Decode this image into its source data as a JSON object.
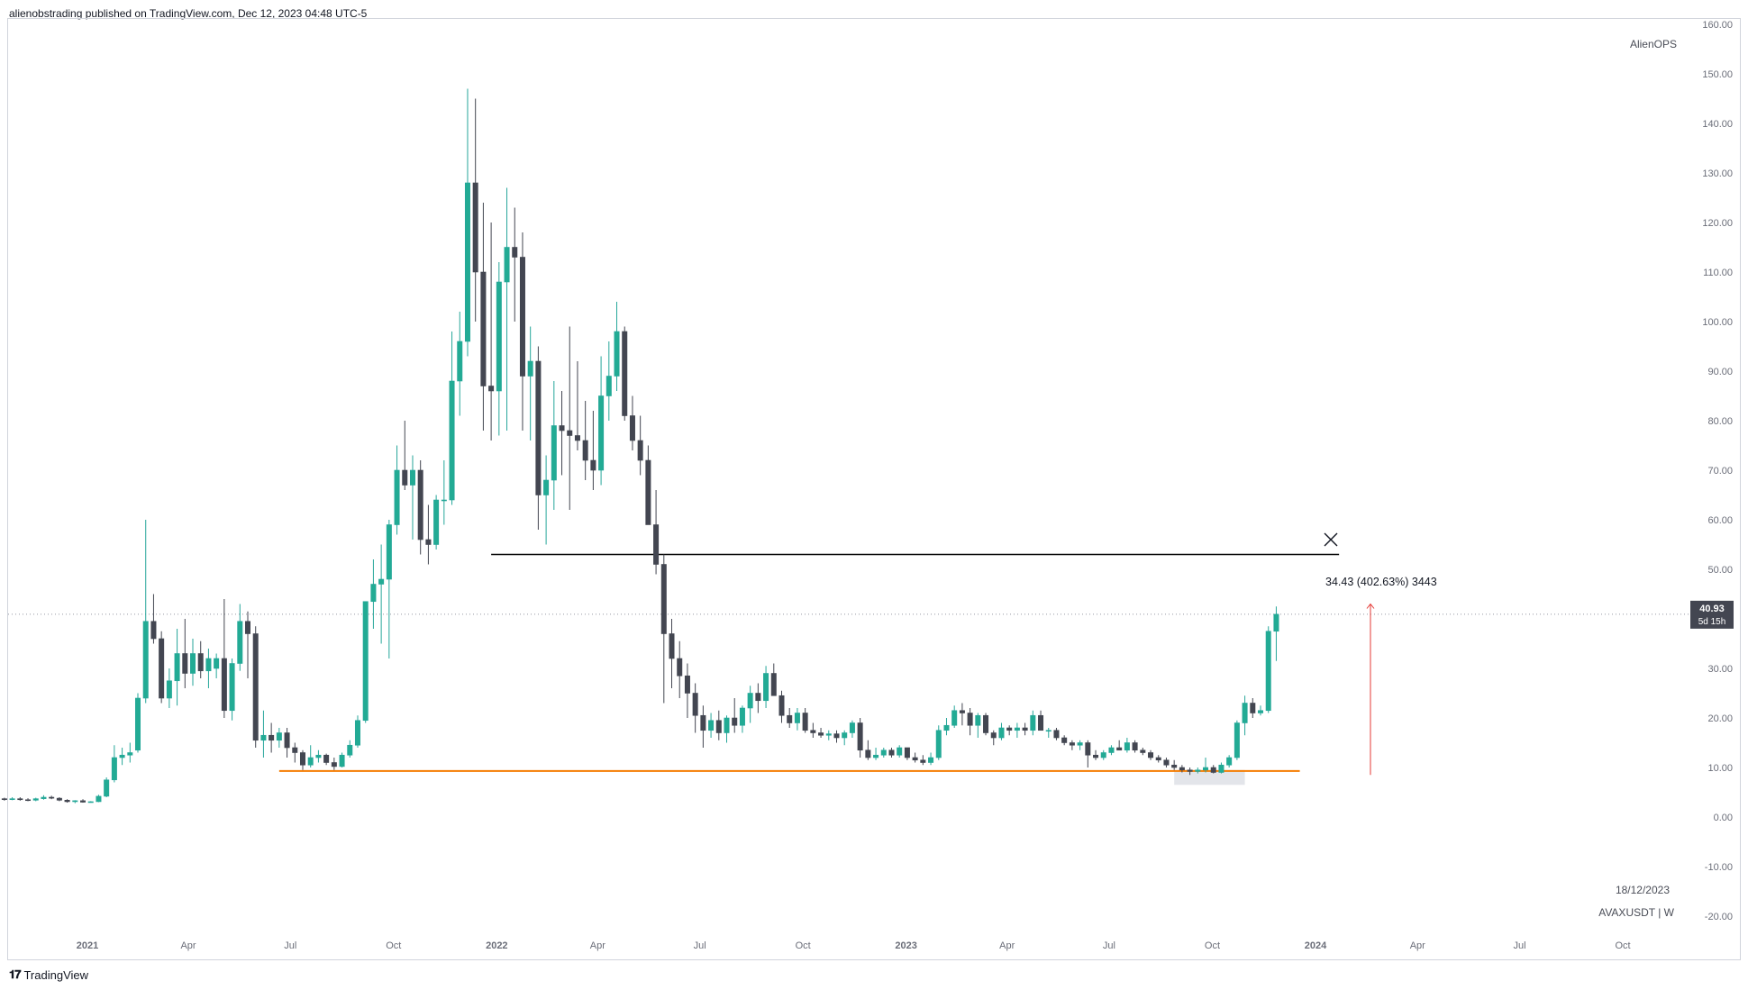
{
  "header": {
    "publisher": "alienobstrading published on TradingView.com, Dec 12, 2023 04:48 UTC-5"
  },
  "brand": {
    "name": "TradingView"
  },
  "watermark": {
    "author": "AlienOPS"
  },
  "legend": {
    "date": "18/12/2023",
    "symbol": "AVAXUSDT | W"
  },
  "price_label": {
    "price": "40.93",
    "countdown": "5d 15h"
  },
  "colors": {
    "up": "#26a69a",
    "up_body": "#22ab94",
    "down": "#434651",
    "support": "#f57c00",
    "resistance": "#000000",
    "measure": "#e53935",
    "zone": "#d1d4dc"
  },
  "chart_data": {
    "type": "candlestick",
    "timeframe": "W",
    "symbol": "AVAXUSDT",
    "ylim": [
      -20,
      160
    ],
    "y_ticks": [
      "160.00",
      "150.00",
      "140.00",
      "130.00",
      "120.00",
      "110.00",
      "100.00",
      "90.00",
      "80.00",
      "70.00",
      "60.00",
      "50.00",
      "40.00",
      "30.00",
      "20.00",
      "10.00",
      "0.00",
      "-10.00",
      "-20.00"
    ],
    "x_ticks": [
      "2021",
      "Apr",
      "Jul",
      "Oct",
      "2022",
      "Apr",
      "Jul",
      "Oct",
      "2023",
      "Apr",
      "Jul",
      "Oct",
      "2024",
      "Apr",
      "Jul",
      "Oct"
    ],
    "x_tick_dates": [
      "2021-01-01",
      "2021-04-01",
      "2021-07-01",
      "2021-10-01",
      "2022-01-01",
      "2022-04-01",
      "2022-07-01",
      "2022-10-01",
      "2023-01-01",
      "2023-04-01",
      "2023-07-01",
      "2023-10-01",
      "2024-01-01",
      "2024-04-01",
      "2024-07-01",
      "2024-10-01"
    ],
    "first_candle_date": "2020-10-05",
    "candles": [
      [
        3.9,
        4.2,
        3.6,
        3.8
      ],
      [
        3.8,
        4.1,
        3.5,
        3.7
      ],
      [
        3.7,
        3.9,
        3.3,
        3.6
      ],
      [
        3.6,
        4.0,
        3.4,
        3.7
      ],
      [
        3.7,
        4.0,
        3.3,
        3.5
      ],
      [
        3.5,
        3.8,
        3.2,
        3.4
      ],
      [
        3.4,
        3.9,
        3.2,
        3.7
      ],
      [
        3.7,
        4.4,
        3.5,
        4.0
      ],
      [
        4.0,
        4.3,
        3.6,
        3.8
      ],
      [
        3.8,
        4.0,
        3.2,
        3.4
      ],
      [
        3.4,
        3.6,
        2.9,
        3.1
      ],
      [
        3.1,
        3.4,
        2.8,
        3.3
      ],
      [
        3.3,
        3.6,
        2.9,
        3.0
      ],
      [
        3.0,
        3.2,
        2.9,
        3.1
      ],
      [
        3.1,
        4.5,
        3.0,
        4.2
      ],
      [
        4.2,
        8.0,
        4.0,
        7.5
      ],
      [
        7.5,
        14.5,
        7.0,
        12.0
      ],
      [
        12.0,
        14.0,
        10.5,
        12.5
      ],
      [
        12.5,
        15.0,
        11.0,
        13.0
      ],
      [
        13.5,
        25.0,
        13.0,
        24.0
      ],
      [
        24.0,
        60.0,
        23.0,
        39.5
      ],
      [
        39.5,
        45.0,
        35.0,
        36.0
      ],
      [
        36.0,
        37.5,
        23.0,
        24.0
      ],
      [
        24.0,
        30.0,
        22.0,
        27.5
      ],
      [
        27.5,
        38.0,
        22.5,
        33.0
      ],
      [
        33.0,
        40.0,
        26.0,
        29.0
      ],
      [
        29.0,
        36.0,
        26.5,
        33.0
      ],
      [
        33.0,
        35.5,
        28.0,
        29.5
      ],
      [
        29.5,
        34.0,
        26.0,
        32.0
      ],
      [
        30.0,
        33.0,
        28.0,
        32.0
      ],
      [
        32.0,
        44.0,
        20.0,
        21.5
      ],
      [
        21.5,
        32.0,
        19.5,
        31.0
      ],
      [
        31.0,
        43.0,
        29.5,
        39.5
      ],
      [
        39.5,
        41.5,
        28.0,
        37.0
      ],
      [
        37.0,
        38.5,
        14.0,
        15.5
      ],
      [
        15.5,
        21.5,
        12.0,
        16.5
      ],
      [
        16.5,
        19.0,
        13.0,
        15.5
      ],
      [
        15.5,
        18.0,
        14.0,
        17.0
      ],
      [
        17.0,
        18.0,
        12.0,
        14.0
      ],
      [
        14.0,
        15.0,
        11.0,
        13.0
      ],
      [
        13.0,
        13.5,
        9.5,
        10.5
      ],
      [
        10.5,
        14.5,
        10.0,
        12.0
      ],
      [
        12.0,
        13.5,
        11.0,
        12.5
      ],
      [
        12.5,
        12.8,
        10.5,
        11.0
      ],
      [
        11.0,
        12.0,
        9.5,
        10.2
      ],
      [
        10.2,
        13.0,
        10.0,
        12.5
      ],
      [
        12.5,
        15.5,
        12.0,
        14.5
      ],
      [
        14.5,
        20.5,
        14.0,
        19.5
      ],
      [
        19.5,
        42.0,
        19.0,
        43.5
      ],
      [
        43.5,
        52.0,
        38.0,
        47.0
      ],
      [
        47.0,
        55.0,
        35.0,
        48.0
      ],
      [
        48.0,
        60.0,
        32.0,
        59.0
      ],
      [
        59.0,
        75.0,
        57.0,
        70.0
      ],
      [
        70.0,
        80.0,
        66.0,
        67.0
      ],
      [
        67.0,
        73.0,
        56.0,
        70.0
      ],
      [
        70.0,
        72.0,
        53.0,
        56.0
      ],
      [
        56.0,
        63.0,
        51.0,
        55.0
      ],
      [
        55.0,
        65.0,
        54.0,
        64.0
      ],
      [
        64.0,
        72.0,
        59.0,
        64.0
      ],
      [
        64.0,
        98.0,
        63.0,
        88.0
      ],
      [
        88.0,
        102.0,
        81.0,
        96.0
      ],
      [
        96.0,
        147.0,
        93.0,
        128.0
      ],
      [
        128.0,
        145.0,
        100.0,
        110.0
      ],
      [
        110.0,
        124.0,
        78.0,
        87.0
      ],
      [
        87.0,
        120.0,
        76.0,
        86.0
      ],
      [
        86.0,
        112.0,
        77.0,
        108.0
      ],
      [
        108.0,
        127.0,
        78.0,
        115.0
      ],
      [
        115.0,
        123.0,
        100.0,
        113.0
      ],
      [
        113.0,
        118.0,
        78.0,
        89.0
      ],
      [
        89.0,
        99.0,
        76.0,
        92.0
      ],
      [
        92.0,
        95.0,
        58.0,
        65.0
      ],
      [
        65.0,
        73.0,
        55.0,
        68.0
      ],
      [
        68.0,
        88.0,
        62.0,
        79.0
      ],
      [
        79.0,
        86.0,
        69.0,
        78.0
      ],
      [
        78.0,
        99.0,
        62.0,
        77.0
      ],
      [
        77.0,
        92.0,
        74.0,
        76.0
      ],
      [
        76.0,
        84.0,
        68.0,
        72.0
      ],
      [
        72.0,
        82.0,
        66.0,
        70.0
      ],
      [
        70.0,
        93.0,
        67.0,
        85.0
      ],
      [
        85.0,
        96.0,
        80.0,
        89.0
      ],
      [
        89.0,
        104.0,
        86.0,
        98.0
      ],
      [
        98.0,
        99.0,
        80.0,
        81.0
      ],
      [
        81.0,
        85.0,
        74.0,
        76.0
      ],
      [
        76.0,
        81.0,
        69.0,
        72.0
      ],
      [
        72.0,
        75.0,
        60.0,
        59.0
      ],
      [
        59.0,
        66.0,
        49.0,
        51.0
      ],
      [
        51.0,
        53.0,
        23.0,
        37.0
      ],
      [
        37.0,
        40.0,
        26.0,
        32.0
      ],
      [
        32.0,
        35.5,
        24.0,
        28.5
      ],
      [
        28.5,
        31.0,
        20.0,
        25.0
      ],
      [
        25.0,
        27.0,
        17.0,
        20.5
      ],
      [
        20.5,
        22.5,
        14.0,
        17.5
      ],
      [
        17.5,
        21.0,
        16.0,
        19.5
      ],
      [
        19.5,
        21.5,
        15.5,
        17.0
      ],
      [
        17.0,
        20.5,
        15.0,
        20.0
      ],
      [
        20.0,
        24.0,
        17.0,
        18.5
      ],
      [
        18.5,
        22.5,
        17.0,
        22.0
      ],
      [
        22.0,
        26.5,
        19.0,
        25.0
      ],
      [
        25.0,
        27.0,
        21.0,
        23.5
      ],
      [
        23.5,
        30.5,
        22.0,
        29.0
      ],
      [
        29.0,
        31.0,
        24.5,
        24.5
      ],
      [
        24.5,
        25.5,
        19.0,
        20.5
      ],
      [
        20.5,
        22.0,
        18.0,
        19.0
      ],
      [
        19.0,
        22.0,
        17.5,
        21.0
      ],
      [
        21.0,
        22.0,
        17.0,
        17.5
      ],
      [
        17.5,
        19.0,
        16.0,
        17.0
      ],
      [
        17.0,
        18.0,
        16.0,
        16.5
      ],
      [
        16.5,
        17.5,
        15.5,
        16.8
      ],
      [
        16.8,
        17.5,
        15.0,
        16.0
      ],
      [
        16.0,
        17.5,
        14.5,
        17.0
      ],
      [
        17.0,
        19.5,
        16.0,
        19.0
      ],
      [
        19.0,
        20.0,
        12.0,
        13.5
      ],
      [
        13.5,
        15.5,
        11.5,
        12.0
      ],
      [
        12.0,
        14.0,
        11.5,
        12.5
      ],
      [
        12.5,
        14.0,
        12.0,
        13.5
      ],
      [
        13.5,
        14.0,
        12.0,
        12.5
      ],
      [
        12.5,
        14.5,
        12.0,
        14.0
      ],
      [
        14.0,
        14.0,
        11.5,
        12.0
      ],
      [
        12.0,
        13.0,
        11.0,
        11.5
      ],
      [
        11.5,
        12.5,
        10.5,
        11.0
      ],
      [
        11.0,
        13.0,
        10.5,
        12.0
      ],
      [
        12.0,
        18.5,
        11.5,
        17.5
      ],
      [
        17.5,
        20.0,
        16.5,
        18.5
      ],
      [
        18.5,
        22.5,
        18.0,
        21.5
      ],
      [
        21.5,
        23.0,
        18.5,
        21.0
      ],
      [
        21.0,
        22.0,
        16.5,
        18.5
      ],
      [
        18.5,
        21.0,
        16.0,
        20.5
      ],
      [
        20.5,
        21.0,
        16.5,
        17.0
      ],
      [
        17.0,
        17.5,
        14.5,
        16.0
      ],
      [
        16.0,
        19.0,
        15.5,
        18.0
      ],
      [
        18.0,
        18.5,
        16.5,
        17.5
      ],
      [
        17.5,
        19.0,
        16.0,
        18.0
      ],
      [
        18.0,
        19.0,
        16.5,
        17.5
      ],
      [
        17.5,
        21.5,
        16.5,
        20.5
      ],
      [
        20.5,
        21.5,
        17.5,
        17.5
      ],
      [
        17.5,
        18.0,
        16.0,
        17.5
      ],
      [
        17.5,
        18.0,
        15.5,
        16.0
      ],
      [
        16.0,
        16.5,
        14.5,
        15.0
      ],
      [
        15.0,
        15.5,
        13.5,
        14.5
      ],
      [
        14.5,
        15.5,
        13.5,
        15.0
      ],
      [
        15.0,
        15.5,
        10.0,
        12.5
      ],
      [
        12.5,
        13.5,
        11.5,
        12.0
      ],
      [
        12.0,
        13.5,
        11.5,
        13.0
      ],
      [
        13.0,
        14.5,
        12.5,
        14.0
      ],
      [
        14.0,
        15.5,
        13.5,
        13.5
      ],
      [
        13.5,
        16.0,
        13.0,
        15.0
      ],
      [
        15.0,
        15.5,
        13.0,
        13.5
      ],
      [
        13.5,
        14.0,
        12.5,
        13.0
      ],
      [
        13.0,
        13.5,
        11.5,
        12.0
      ],
      [
        12.0,
        12.5,
        11.0,
        11.5
      ],
      [
        11.5,
        12.0,
        10.0,
        10.5
      ],
      [
        10.5,
        11.5,
        9.5,
        10.0
      ],
      [
        10.0,
        10.5,
        9.0,
        9.5
      ],
      [
        9.5,
        10.0,
        8.5,
        9.2
      ],
      [
        9.2,
        10.0,
        8.8,
        9.5
      ],
      [
        9.5,
        12.0,
        9.0,
        10.0
      ],
      [
        10.0,
        10.5,
        8.8,
        9.0
      ],
      [
        9.0,
        11.0,
        8.8,
        10.5
      ],
      [
        10.5,
        12.5,
        10.0,
        12.0
      ],
      [
        12.0,
        19.5,
        11.5,
        19.0
      ],
      [
        19.0,
        24.5,
        16.5,
        23.0
      ],
      [
        23.0,
        24.0,
        20.0,
        21.0
      ],
      [
        21.0,
        22.5,
        20.5,
        21.5
      ],
      [
        21.5,
        38.5,
        21.0,
        37.5
      ],
      [
        37.5,
        42.5,
        31.5,
        40.93
      ]
    ],
    "support_line": {
      "price": 9.3,
      "from": "2021-06-21",
      "to": "2023-12-18"
    },
    "resistance_line": {
      "price": 53.0,
      "from": "2021-12-27",
      "to": "2024-01-22"
    },
    "price_range_measure": {
      "label": "34.43 (402.63%) 3443",
      "from_price": 8.5,
      "to_price": 43.0,
      "date": "2024-02-19"
    },
    "highlight_zone": {
      "from": "2023-08-28",
      "to": "2023-10-30",
      "price_low": 6.5,
      "price_high": 9.5
    },
    "last_price": 40.93
  }
}
